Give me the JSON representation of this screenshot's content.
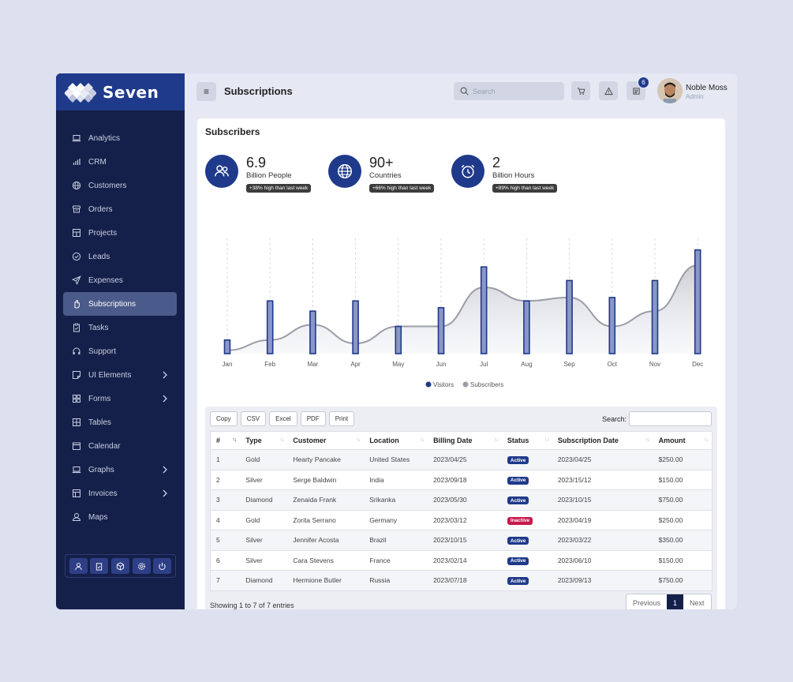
{
  "brand": {
    "name": "Seven"
  },
  "sidebar": {
    "items": [
      {
        "label": "Analytics",
        "icon": "laptop-icon"
      },
      {
        "label": "CRM",
        "icon": "bar-chart-icon"
      },
      {
        "label": "Customers",
        "icon": "globe-icon"
      },
      {
        "label": "Orders",
        "icon": "box-icon"
      },
      {
        "label": "Projects",
        "icon": "grid-icon"
      },
      {
        "label": "Leads",
        "icon": "check-circle-icon"
      },
      {
        "label": "Expenses",
        "icon": "send-icon"
      },
      {
        "label": "Subscriptions",
        "icon": "hand-icon",
        "active": true
      },
      {
        "label": "Tasks",
        "icon": "clipboard-icon"
      },
      {
        "label": "Support",
        "icon": "headset-icon"
      },
      {
        "label": "UI Elements",
        "icon": "sticky-note-icon",
        "chevron": true
      },
      {
        "label": "Forms",
        "icon": "apps-icon",
        "chevron": true
      },
      {
        "label": "Tables",
        "icon": "table-icon"
      },
      {
        "label": "Calendar",
        "icon": "calendar-icon"
      },
      {
        "label": "Graphs",
        "icon": "laptop-icon",
        "chevron": true
      },
      {
        "label": "Invoices",
        "icon": "invoice-icon",
        "chevron": true
      },
      {
        "label": "Maps",
        "icon": "pin-icon"
      }
    ],
    "footer": [
      "user-icon",
      "clipboard-icon",
      "cube-icon",
      "gear-icon",
      "power-icon"
    ]
  },
  "header": {
    "title": "Subscriptions",
    "search_placeholder": "Search",
    "notif_count": "6",
    "user_name": "Noble Moss",
    "user_role": "Admin"
  },
  "card": {
    "title": "Subscribers",
    "stats": [
      {
        "value": "6.9",
        "label": "Billion People",
        "pill": "+38% high than last week",
        "icon": "users-icon"
      },
      {
        "value": "90+",
        "label": "Countries",
        "pill": "+66% high than last week",
        "icon": "globe-icon"
      },
      {
        "value": "2",
        "label": "Billion Hours",
        "pill": "+89% high than last week",
        "icon": "alarm-clock-icon"
      }
    ]
  },
  "chart_data": {
    "type": "bar",
    "categories": [
      "Jan",
      "Feb",
      "Mar",
      "Apr",
      "May",
      "Jun",
      "Jul",
      "Aug",
      "Sep",
      "Oct",
      "Nov",
      "Dec"
    ],
    "series": [
      {
        "name": "Visitors",
        "type": "bar",
        "color": "#1f3a8a",
        "values": [
          8,
          31,
          25,
          31,
          16,
          27,
          51,
          31,
          43,
          33,
          43,
          61
        ]
      },
      {
        "name": "Subscribers",
        "type": "area",
        "color": "#9a9da8",
        "values": [
          2,
          8,
          17,
          6,
          16,
          16,
          39,
          31,
          33,
          16,
          25,
          52
        ]
      }
    ],
    "ylim": [
      0,
      65
    ],
    "grid": "vertical-dashed",
    "legend": "bottom-center"
  },
  "table": {
    "buttons": [
      "Copy",
      "CSV",
      "Excel",
      "PDF",
      "Print"
    ],
    "search_label": "Search:",
    "columns": [
      "#",
      "Type",
      "Customer",
      "Location",
      "Billing Date",
      "Status",
      "Subscription Date",
      "Amount"
    ],
    "rows": [
      [
        "1",
        "Gold",
        "Hearty Pancake",
        "United States",
        "2023/04/25",
        "Active",
        "2023/04/25",
        "$250.00"
      ],
      [
        "2",
        "Silver",
        "Serge Baldwin",
        "India",
        "2023/09/18",
        "Active",
        "2023/15/12",
        "$150.00"
      ],
      [
        "3",
        "Diamond",
        "Zenaida Frank",
        "Srikanka",
        "2023/05/30",
        "Active",
        "2023/10/15",
        "$750.00"
      ],
      [
        "4",
        "Gold",
        "Zorita Serrano",
        "Germany",
        "2023/03/12",
        "Inactive",
        "2023/04/19",
        "$250.00"
      ],
      [
        "5",
        "Silver",
        "Jennifer Acosta",
        "Brazil",
        "2023/10/15",
        "Active",
        "2023/03/22",
        "$350.00"
      ],
      [
        "6",
        "Silver",
        "Cara Stevens",
        "France",
        "2023/02/14",
        "Active",
        "2023/06/10",
        "$150.00"
      ],
      [
        "7",
        "Diamond",
        "Hermione Butler",
        "Russia",
        "2023/07/18",
        "Active",
        "2023/09/13",
        "$750.00"
      ]
    ],
    "info": "Showing 1 to 7 of 7 entries",
    "pager": {
      "prev": "Previous",
      "current": "1",
      "next": "Next"
    }
  }
}
